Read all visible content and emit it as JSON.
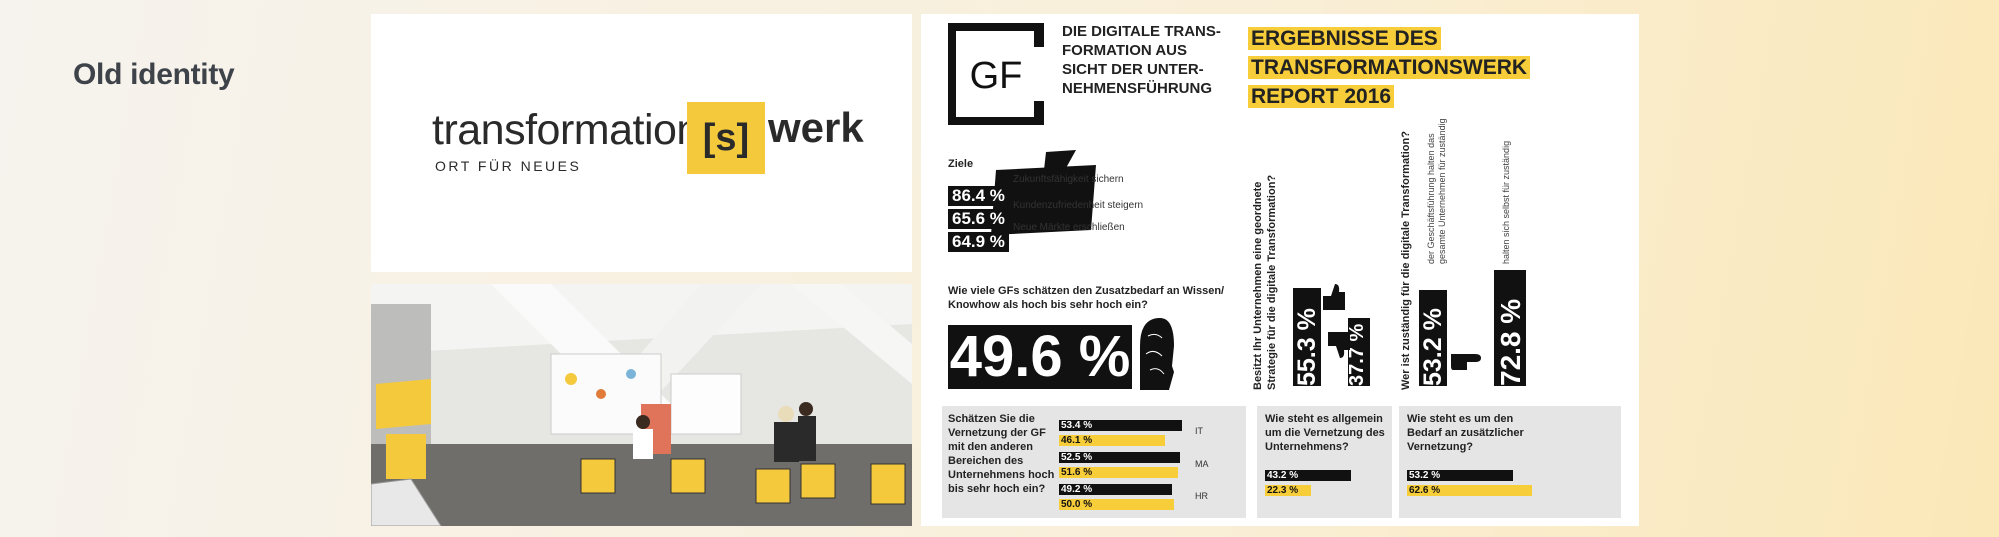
{
  "page_title": "Old identity",
  "logo": {
    "word_left": "transformation",
    "bracket": "[s]",
    "word_right": "werk",
    "tagline": "ORT FÜR NEUES"
  },
  "report": {
    "gf_mark": "GF",
    "subtitle_lines": [
      "DIE DIGITALE TRANS-",
      "FORMATION AUS",
      "SICHT DER UNTER-",
      "NEHMENSFÜHRUNG"
    ],
    "title_lines": [
      "ERGEBNISSE DES",
      "TRANSFORMATIONSWERK",
      "REPORT 2016"
    ],
    "goals": {
      "label": "Ziele",
      "items": [
        {
          "pct": "86.4 %",
          "text": "Zukunftsfähigkeit sichern"
        },
        {
          "pct": "65.6 %",
          "text": "Kundenzufriedenheit steigern"
        },
        {
          "pct": "64.9 %",
          "text": "Neue Märkte erschließen"
        }
      ]
    },
    "knowhow": {
      "question_lines": [
        "Wie viele GFs schätzen den Zusatzbedarf an Wissen/",
        "Knowhow als hoch bis sehr hoch ein?"
      ],
      "value": "49.6 %"
    },
    "strategy": {
      "question_lines": [
        "Besitzt Ihr Unternehmen eine geordnete",
        "Strategie für die digitale Transformation?"
      ],
      "yes": "55.3 %",
      "no": "37.7 %"
    },
    "responsibility": {
      "question": "Wer ist zuständig für die digitale Transformation?",
      "whole_label_lines": [
        "der Geschäftsführung halten das",
        "gesamte Unternehmen für zuständig"
      ],
      "whole_value": "53.2 %",
      "self_label": "halten sich selbst für zuständig",
      "self_value": "72.8 %"
    },
    "networking": {
      "question_lines": [
        "Schätzen Sie die",
        "Vernetzung der GF",
        "mit den anderen",
        "Bereichen des",
        "Unternehmens hoch",
        "bis sehr hoch ein?"
      ],
      "groups": [
        {
          "tag": "IT",
          "black": "53.4 %",
          "yellow": "46.1 %",
          "black_value": 53.4,
          "yellow_value": 46.1
        },
        {
          "tag": "MA",
          "black": "52.5 %",
          "yellow": "51.6 %",
          "black_value": 52.5,
          "yellow_value": 51.6
        },
        {
          "tag": "HR",
          "black": "49.2 %",
          "yellow": "50.0 %",
          "black_value": 49.2,
          "yellow_value": 50.0
        }
      ]
    },
    "general_network": {
      "question_lines": [
        "Wie steht es allgemein",
        "um die Vernetzung des",
        "Unternehmens?"
      ],
      "black": "43.2 %",
      "yellow": "22.3 %",
      "black_value": 43.2,
      "yellow_value": 22.3
    },
    "additional_network": {
      "question_lines": [
        "Wie steht es um den",
        "Bedarf an zusätzlicher",
        "Vernetzung?"
      ],
      "black": "53.2 %",
      "yellow": "62.6 %",
      "black_value": 53.2,
      "yellow_value": 62.6
    }
  },
  "colors": {
    "accent_yellow": "#f7cd3a",
    "ink": "#111111"
  }
}
